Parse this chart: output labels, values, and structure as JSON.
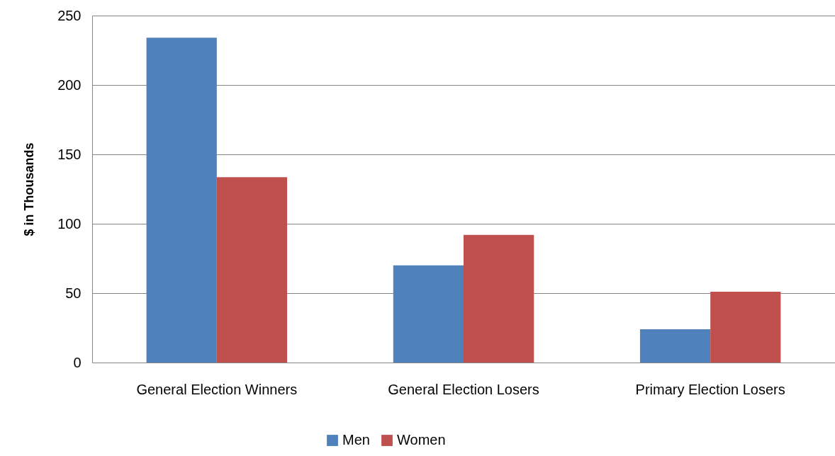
{
  "chart_data": {
    "type": "bar",
    "ylabel": "$ in Thousands",
    "categories": [
      "General Election Winners",
      "General Election Losers",
      "Primary Election Losers"
    ],
    "series": [
      {
        "name": "Men",
        "color": "#4f81bd",
        "values": [
          234,
          70,
          24
        ]
      },
      {
        "name": "Women",
        "color": "#c0504d",
        "values": [
          133.5,
          92,
          51
        ]
      }
    ],
    "ylim": [
      0,
      250
    ],
    "yticks": [
      0,
      50,
      100,
      150,
      200,
      250
    ],
    "grid": "y",
    "legend": "bottom"
  }
}
